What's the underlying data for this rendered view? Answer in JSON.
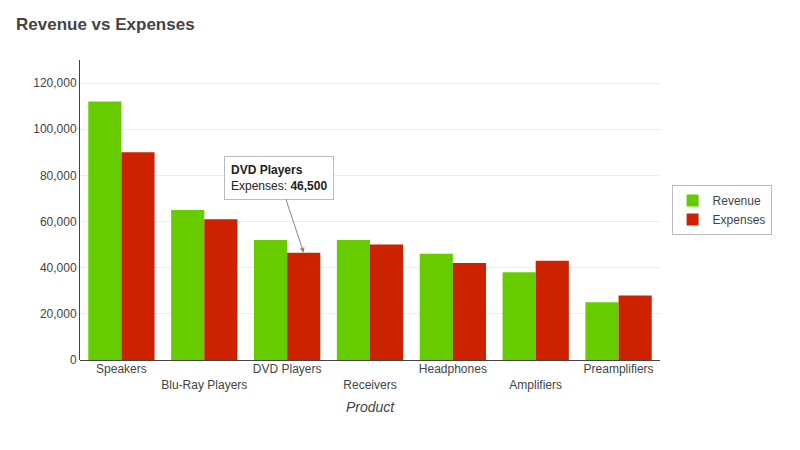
{
  "chart_data": {
    "type": "bar",
    "title": "Revenue vs Expenses",
    "xlabel": "Product",
    "categories": [
      "Speakers",
      "Blu-Ray Players",
      "DVD Players",
      "Receivers",
      "Headphones",
      "Amplifiers",
      "Preamplifiers"
    ],
    "series": [
      {
        "name": "Revenue",
        "color": "#66cc00",
        "values": [
          112000,
          65000,
          52000,
          52000,
          46000,
          38000,
          25000
        ]
      },
      {
        "name": "Expenses",
        "color": "#cc2200",
        "values": [
          90000,
          61000,
          46500,
          50000,
          42000,
          43000,
          28000
        ]
      }
    ],
    "ylim": [
      0,
      130000
    ],
    "yticks": [
      0,
      {
        "value": 20000,
        "label": "20,000"
      },
      {
        "value": 40000,
        "label": "40,000"
      },
      {
        "value": 60000,
        "label": "60,000"
      },
      {
        "value": 80000,
        "label": "80,000"
      },
      {
        "value": 100000,
        "label": "100,000"
      },
      {
        "value": 120000,
        "label": "120,000"
      }
    ],
    "grid": true,
    "legend": "right",
    "annotations": [
      {
        "category": "DVD Players",
        "series": "Expenses",
        "value": 46500,
        "title": "DVD Players",
        "text": "Expenses: 46,500"
      }
    ]
  }
}
